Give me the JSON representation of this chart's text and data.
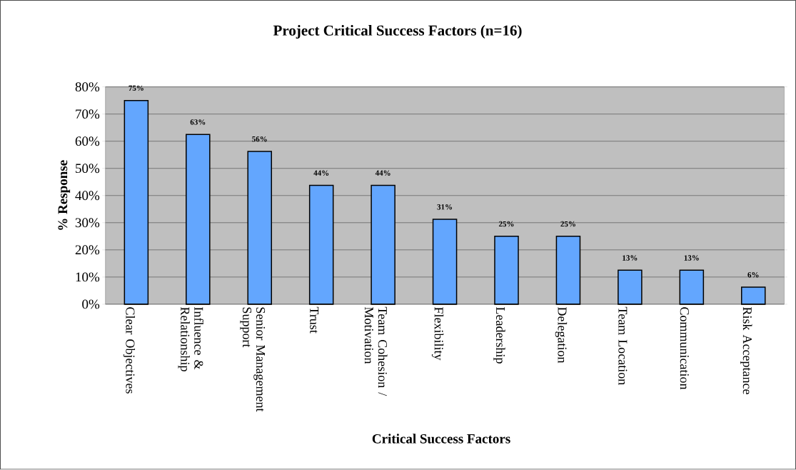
{
  "chart_data": {
    "type": "bar",
    "title": "Project Critical Success Factors (n=16)",
    "xlabel": "Critical Success Factors",
    "ylabel": "% Response",
    "categories": [
      "Clear Objectives",
      "Influence & Relationship",
      "Senior Management Support",
      "Trust",
      "Team Cohesion / Motivation",
      "Flexibility",
      "Leadership",
      "Delegation",
      "Team Location",
      "Communication",
      "Risk Acceptance"
    ],
    "values": [
      75,
      62.5,
      56.25,
      43.75,
      43.75,
      31.25,
      25,
      25,
      12.5,
      12.5,
      6.25
    ],
    "value_labels": [
      "75%",
      "63%",
      "56%",
      "44%",
      "44%",
      "31%",
      "25%",
      "25%",
      "13%",
      "13%",
      "6%"
    ],
    "color": "#63a6fe",
    "ylim": [
      0,
      80
    ],
    "yticks": [
      {
        "value": 0,
        "label": "0%"
      },
      {
        "value": 10,
        "label": "10%"
      },
      {
        "value": 20,
        "label": "20%"
      },
      {
        "value": 30,
        "label": "30%"
      },
      {
        "value": 40,
        "label": "40%"
      },
      {
        "value": 50,
        "label": "50%"
      },
      {
        "value": 60,
        "label": "60%"
      },
      {
        "value": 70,
        "label": "70%"
      },
      {
        "value": 80,
        "label": "80%"
      }
    ],
    "grid": "y"
  }
}
